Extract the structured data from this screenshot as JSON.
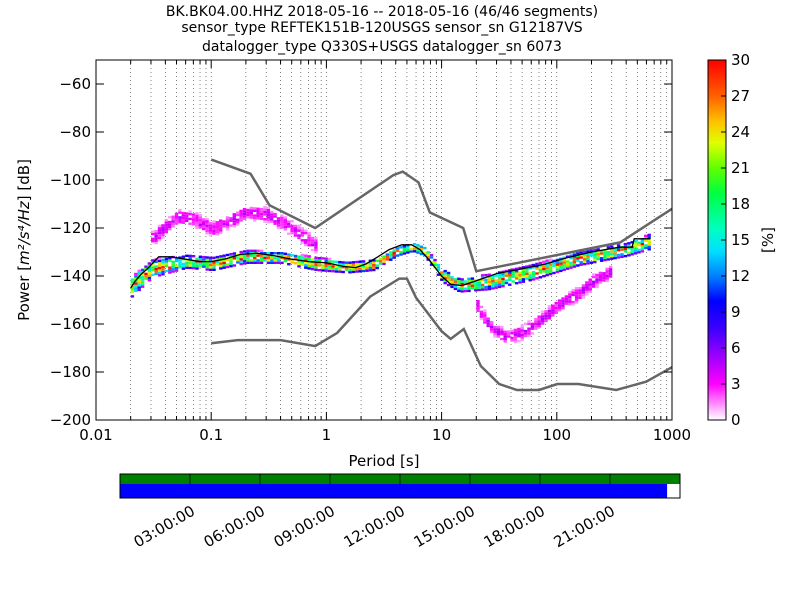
{
  "chart_data": {
    "type": "heatmap",
    "title_lines": [
      "BK.BK04.00.HHZ   2018-05-16 -- 2018-05-16  (46/46 segments)",
      "sensor_type REFTEK151B-120USGS sensor_sn G12187VS",
      "datalogger_type Q330S+USGS datalogger_sn 6073"
    ],
    "xlabel": "Period [s]",
    "ylabel_prefix": "Power [",
    "ylabel_math": "m²/s⁴/Hz",
    "ylabel_suffix": "] [dB]",
    "x_scale": "log",
    "xlim": [
      0.01,
      1000
    ],
    "ylim": [
      -200,
      -50
    ],
    "x_tick_labels": [
      {
        "value": 0.01,
        "label": "0.01"
      },
      {
        "value": 0.1,
        "label": "0.1"
      },
      {
        "value": 1,
        "label": "1"
      },
      {
        "value": 10,
        "label": "10"
      },
      {
        "value": 100,
        "label": "100"
      },
      {
        "value": 1000,
        "label": "1000"
      }
    ],
    "y_ticks": [
      -60,
      -80,
      -100,
      -120,
      -140,
      -160,
      -180,
      -200
    ],
    "y_tick_labels": [
      "−60",
      "−80",
      "−100",
      "−120",
      "−140",
      "−160",
      "−180",
      "−200"
    ],
    "grid": "dotted-vertical",
    "colorbar": {
      "label": "[%]",
      "min": 0,
      "max": 30,
      "ticks": [
        0,
        3,
        6,
        9,
        12,
        15,
        18,
        21,
        24,
        27,
        30
      ],
      "tick_labels": [
        "0",
        "3",
        "6",
        "9",
        "12",
        "15",
        "18",
        "21",
        "24",
        "27",
        "30"
      ]
    },
    "nhnm": [
      [
        0.1,
        -91.5
      ],
      [
        0.22,
        -97.4
      ],
      [
        0.32,
        -110.5
      ],
      [
        0.8,
        -120
      ],
      [
        3.8,
        -98
      ],
      [
        4.6,
        -96.5
      ],
      [
        6.3,
        -101
      ],
      [
        7.9,
        -113.5
      ],
      [
        15.4,
        -120
      ],
      [
        20,
        -138
      ],
      [
        354.8,
        -126
      ],
      [
        1000,
        -112
      ]
    ],
    "nlnm": [
      [
        0.1,
        -168
      ],
      [
        0.17,
        -166.7
      ],
      [
        0.4,
        -166.7
      ],
      [
        0.8,
        -169.2
      ],
      [
        1.24,
        -163.7
      ],
      [
        2.4,
        -148.6
      ],
      [
        4.3,
        -141.1
      ],
      [
        5,
        -141.1
      ],
      [
        6,
        -149
      ],
      [
        10,
        -163
      ],
      [
        12,
        -166.2
      ],
      [
        15.6,
        -162.1
      ],
      [
        21.9,
        -177.5
      ],
      [
        31.6,
        -185
      ],
      [
        45,
        -187.5
      ],
      [
        70,
        -187.5
      ],
      [
        101,
        -185
      ],
      [
        154,
        -185
      ],
      [
        328,
        -187.5
      ],
      [
        600,
        -184
      ],
      [
        1000,
        -178
      ]
    ],
    "mode_curve": [
      [
        0.02,
        -145
      ],
      [
        0.022,
        -142
      ],
      [
        0.025,
        -139
      ],
      [
        0.028,
        -137
      ],
      [
        0.032,
        -134
      ],
      [
        0.035,
        -132
      ],
      [
        0.045,
        -132
      ],
      [
        0.06,
        -133
      ],
      [
        0.08,
        -134
      ],
      [
        0.1,
        -134
      ],
      [
        0.13,
        -133
      ],
      [
        0.18,
        -131
      ],
      [
        0.25,
        -130.5
      ],
      [
        0.35,
        -131.5
      ],
      [
        0.5,
        -133
      ],
      [
        0.7,
        -134
      ],
      [
        1.0,
        -134.5
      ],
      [
        1.4,
        -136
      ],
      [
        1.8,
        -136.5
      ],
      [
        2.2,
        -135
      ],
      [
        2.8,
        -132
      ],
      [
        3.5,
        -129
      ],
      [
        4.5,
        -127
      ],
      [
        5.5,
        -127
      ],
      [
        6.5,
        -129
      ],
      [
        8,
        -134
      ],
      [
        10,
        -140
      ],
      [
        12,
        -143.5
      ],
      [
        15,
        -144
      ],
      [
        20,
        -142
      ],
      [
        30,
        -139
      ],
      [
        50,
        -137
      ],
      [
        80,
        -135
      ],
      [
        120,
        -132.5
      ],
      [
        200,
        -130
      ],
      [
        350,
        -128
      ],
      [
        450,
        -128
      ],
      [
        470,
        -124.5
      ],
      [
        600,
        -124.5
      ],
      [
        650,
        -124.5
      ]
    ],
    "percentile_high": [
      [
        0.02,
        -140
      ],
      [
        0.03,
        -133
      ],
      [
        0.06,
        -131
      ],
      [
        0.1,
        -132
      ],
      [
        0.2,
        -129
      ],
      [
        0.4,
        -130
      ],
      [
        0.8,
        -132
      ],
      [
        1.5,
        -134
      ],
      [
        2.5,
        -133
      ],
      [
        4,
        -128
      ],
      [
        5.5,
        -126
      ],
      [
        7,
        -128
      ],
      [
        10,
        -137
      ],
      [
        14,
        -141
      ],
      [
        25,
        -139
      ],
      [
        60,
        -135
      ],
      [
        150,
        -130
      ],
      [
        400,
        -126
      ],
      [
        650,
        -122
      ]
    ],
    "percentile_low": [
      [
        0.02,
        -148
      ],
      [
        0.03,
        -140
      ],
      [
        0.06,
        -136
      ],
      [
        0.1,
        -137
      ],
      [
        0.2,
        -134
      ],
      [
        0.4,
        -134
      ],
      [
        0.8,
        -137
      ],
      [
        1.5,
        -138
      ],
      [
        2.5,
        -137
      ],
      [
        4,
        -131
      ],
      [
        5.5,
        -129
      ],
      [
        7,
        -131
      ],
      [
        10,
        -142
      ],
      [
        14,
        -146
      ],
      [
        25,
        -145
      ],
      [
        60,
        -141
      ],
      [
        150,
        -135
      ],
      [
        400,
        -131
      ],
      [
        650,
        -128
      ]
    ],
    "outlier_upper": [
      [
        0.03,
        -124
      ],
      [
        0.05,
        -115
      ],
      [
        0.07,
        -116
      ],
      [
        0.1,
        -120
      ],
      [
        0.15,
        -116
      ],
      [
        0.2,
        -113
      ],
      [
        0.3,
        -114
      ],
      [
        0.5,
        -120
      ],
      [
        0.8,
        -127
      ]
    ],
    "outlier_lower": [
      [
        20,
        -152
      ],
      [
        25,
        -160
      ],
      [
        35,
        -165
      ],
      [
        50,
        -163
      ],
      [
        70,
        -158
      ],
      [
        100,
        -152
      ],
      [
        150,
        -147
      ],
      [
        200,
        -142
      ],
      [
        300,
        -137
      ]
    ],
    "data_availability": {
      "tick_labels": [
        "03:00:00",
        "06:00:00",
        "09:00:00",
        "12:00:00",
        "15:00:00",
        "18:00:00",
        "21:00:00"
      ],
      "tick_hours": [
        3,
        6,
        9,
        12,
        15,
        18,
        21
      ],
      "data_color": "#008000",
      "psd_color": "#0000ff",
      "data_fraction": 1.0,
      "psd_fraction": 0.977
    }
  }
}
